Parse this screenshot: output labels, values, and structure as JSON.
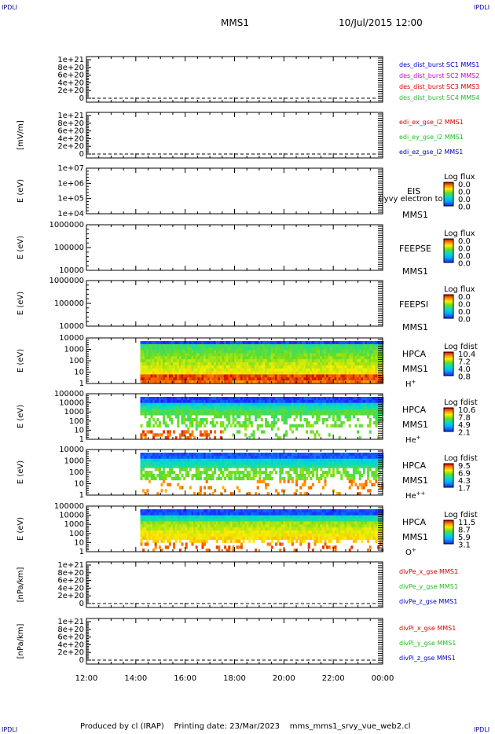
{
  "header": {
    "corner_tl": "IPDLI",
    "corner_tr": "IPDLI",
    "corner_bl": "IPDLI",
    "corner_br": "IPDLI",
    "mission": "MMS1",
    "datetime": "10/Jul/2015 12:00"
  },
  "footer": {
    "produced": "Produced by cl (IRAP)",
    "printing": "Printing date: 23/Mar/2023",
    "script": "mms_mms1_srvy_vue_web2.cl"
  },
  "colors": {
    "dash": "#000000",
    "mms1": "#0000cc",
    "mms2": "#cc00cc",
    "mms3": "#dd0000",
    "mms4": "#22bb22",
    "red": "#dd0000",
    "green": "#22bb22",
    "blue": "#0000cc"
  },
  "chart_data": [
    {
      "type": "line",
      "panel": "des_dist_burst",
      "ylabel": "",
      "ytick_labels": [
        "1e+21",
        "8e+20",
        "6e+20",
        "4e+20",
        "2e+20",
        "0"
      ],
      "ylim": [
        0,
        1.05e+21
      ],
      "series": [
        {
          "name": "des_dist_burst SC1 MMS1",
          "color": "#0000cc",
          "values": []
        },
        {
          "name": "des_dist_burst SC2 MMS2",
          "color": "#cc00cc",
          "values": []
        },
        {
          "name": "des_dist_burst SC3 MMS3",
          "color": "#dd0000",
          "values": []
        },
        {
          "name": "des_dist_burst SC4 MMS4",
          "color": "#22bb22",
          "values": []
        }
      ]
    },
    {
      "type": "line",
      "panel": "edi_e_gse_l2",
      "ylabel": "[mV/m]",
      "ytick_labels": [
        "1e+21",
        "8e+20",
        "6e+20",
        "4e+20",
        "2e+20",
        "0"
      ],
      "ylim": [
        0,
        1.05e+21
      ],
      "series": [
        {
          "name": "edi_ex_gse_l2 MMS1",
          "color": "#dd0000",
          "values": []
        },
        {
          "name": "edi_ey_gse_l2 MMS1",
          "color": "#22bb22",
          "values": []
        },
        {
          "name": "edi_ez_gse_l2 MMS1",
          "color": "#0000cc",
          "values": []
        }
      ]
    },
    {
      "type": "heatmap",
      "panel": "EIS",
      "ylabel": "E (eV)",
      "ytick_labels": [
        "1e+07",
        "1e+06",
        "1e+05",
        "1e+04"
      ],
      "yscale": "log",
      "instrument": "EIS",
      "spacecraft": "MMS1",
      "overlay_text": "(lyvy electron to",
      "colorbar": {
        "title": "Log flux",
        "labels": [
          "0.0",
          "0.0",
          "0.0",
          "0.0"
        ]
      }
    },
    {
      "type": "heatmap",
      "panel": "FEEPSE",
      "ylabel": "E (eV)",
      "ytick_labels": [
        "1000000",
        "100000",
        "10000"
      ],
      "yscale": "log",
      "instrument": "FEEPSE",
      "spacecraft": "MMS1",
      "colorbar": {
        "title": "Log flux",
        "labels": [
          "0.0",
          "0.0",
          "0.0",
          "0.0"
        ]
      }
    },
    {
      "type": "heatmap",
      "panel": "FEEPSI",
      "ylabel": "E (eV)",
      "ytick_labels": [
        "1000000",
        "100000",
        "10000"
      ],
      "yscale": "log",
      "instrument": "FEEPSI",
      "spacecraft": "MMS1",
      "colorbar": {
        "title": "Log flux",
        "labels": [
          "0.0",
          "0.0",
          "0.0",
          "0.0"
        ]
      }
    },
    {
      "type": "heatmap",
      "panel": "HPCA H+",
      "ylabel": "E (eV)",
      "ytick_labels": [
        "10000",
        "1000",
        "100",
        "10",
        "1"
      ],
      "yscale": "log",
      "instrument": "HPCA",
      "spacecraft": "MMS1",
      "species": "H",
      "charge": "+",
      "data_start": "14:10",
      "colorbar": {
        "title": "Log fdist",
        "labels": [
          "10.4",
          "7.2",
          "4.0",
          "0.8"
        ]
      }
    },
    {
      "type": "heatmap",
      "panel": "HPCA He+",
      "ylabel": "E (eV)",
      "ytick_labels": [
        "100000",
        "10000",
        "1000",
        "100",
        "10",
        "1"
      ],
      "yscale": "log",
      "instrument": "HPCA",
      "spacecraft": "MMS1",
      "species": "He",
      "charge": "+",
      "data_start": "14:10",
      "colorbar": {
        "title": "Log fdist",
        "labels": [
          "10.6",
          "7.8",
          "4.9",
          "2.1"
        ]
      }
    },
    {
      "type": "heatmap",
      "panel": "HPCA He++",
      "ylabel": "E (eV)",
      "ytick_labels": [
        "10000",
        "1000",
        "100",
        "10",
        "1"
      ],
      "yscale": "log",
      "instrument": "HPCA",
      "spacecraft": "MMS1",
      "species": "He",
      "charge": "++",
      "data_start": "14:10",
      "colorbar": {
        "title": "Log fdist",
        "labels": [
          "9.5",
          "6.9",
          "4.3",
          "1.7"
        ]
      }
    },
    {
      "type": "heatmap",
      "panel": "HPCA O+",
      "ylabel": "E (eV)",
      "ytick_labels": [
        "100000",
        "10000",
        "1000",
        "100",
        "10",
        "1"
      ],
      "yscale": "log",
      "instrument": "HPCA",
      "spacecraft": "MMS1",
      "species": "O",
      "charge": "+",
      "data_start": "14:10",
      "colorbar": {
        "title": "Log fdist",
        "labels": [
          "11.5",
          "8.7",
          "5.9",
          "3.1"
        ]
      }
    },
    {
      "type": "line",
      "panel": "divPe_gse",
      "ylabel": "[nPa/km]",
      "ytick_labels": [
        "1e+21",
        "8e+20",
        "6e+20",
        "4e+20",
        "2e+20",
        "0"
      ],
      "ylim": [
        0,
        1.05e+21
      ],
      "series": [
        {
          "name": "divPe_x_gse MMS1",
          "color": "#dd0000",
          "values": []
        },
        {
          "name": "divPe_y_gse MMS1",
          "color": "#22bb22",
          "values": []
        },
        {
          "name": "divPe_z_gse MMS1",
          "color": "#0000cc",
          "values": []
        }
      ]
    },
    {
      "type": "line",
      "panel": "divPi_gse",
      "ylabel": "[nPa/km]",
      "ytick_labels": [
        "1e+21",
        "8e+20",
        "6e+20",
        "4e+20",
        "2e+20",
        "0"
      ],
      "ylim": [
        0,
        1.05e+21
      ],
      "series": [
        {
          "name": "divPi_x_gse MMS1",
          "color": "#dd0000",
          "values": []
        },
        {
          "name": "divPi_y_gse MMS1",
          "color": "#22bb22",
          "values": []
        },
        {
          "name": "divPi_z_gse MMS1",
          "color": "#0000cc",
          "values": []
        }
      ]
    }
  ],
  "xaxis": {
    "ticks": [
      "12:00",
      "14:00",
      "16:00",
      "18:00",
      "20:00",
      "22:00",
      "00:00"
    ]
  }
}
